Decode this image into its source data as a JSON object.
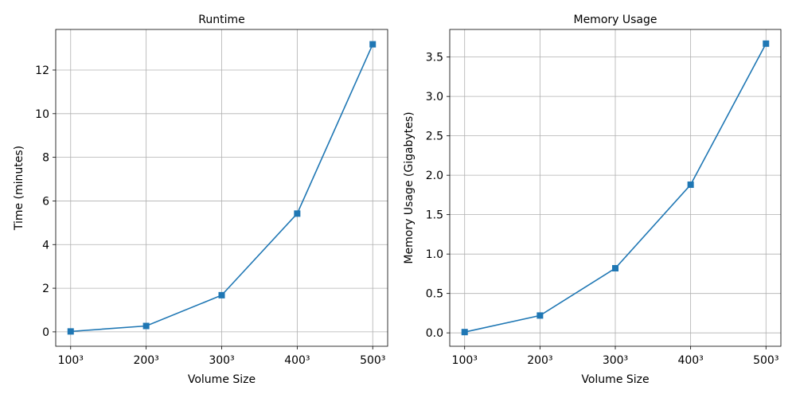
{
  "chart_data": [
    {
      "type": "line",
      "title": "Runtime",
      "xlabel": "Volume Size",
      "ylabel": "Time (minutes)",
      "categories": [
        "100³",
        "200³",
        "300³",
        "400³",
        "500³"
      ],
      "series": [
        {
          "values": [
            0.02,
            0.27,
            1.68,
            5.42,
            13.18
          ]
        }
      ],
      "yticks": [
        "0",
        "2",
        "4",
        "6",
        "8",
        "10",
        "12"
      ],
      "ylim": [
        -0.66,
        13.86
      ],
      "grid": true,
      "marker": "square",
      "color": "#1f77b4"
    },
    {
      "type": "line",
      "title": "Memory Usage",
      "xlabel": "Volume Size",
      "ylabel": "Memory Usage (Gigabytes)",
      "categories": [
        "100³",
        "200³",
        "300³",
        "400³",
        "500³"
      ],
      "series": [
        {
          "values": [
            0.01,
            0.22,
            0.82,
            1.88,
            3.67
          ]
        }
      ],
      "yticks": [
        "0.0",
        "0.5",
        "1.0",
        "1.5",
        "2.0",
        "2.5",
        "3.0",
        "3.5"
      ],
      "ylim": [
        -0.17,
        3.85
      ],
      "grid": true,
      "marker": "square",
      "color": "#1f77b4"
    }
  ]
}
